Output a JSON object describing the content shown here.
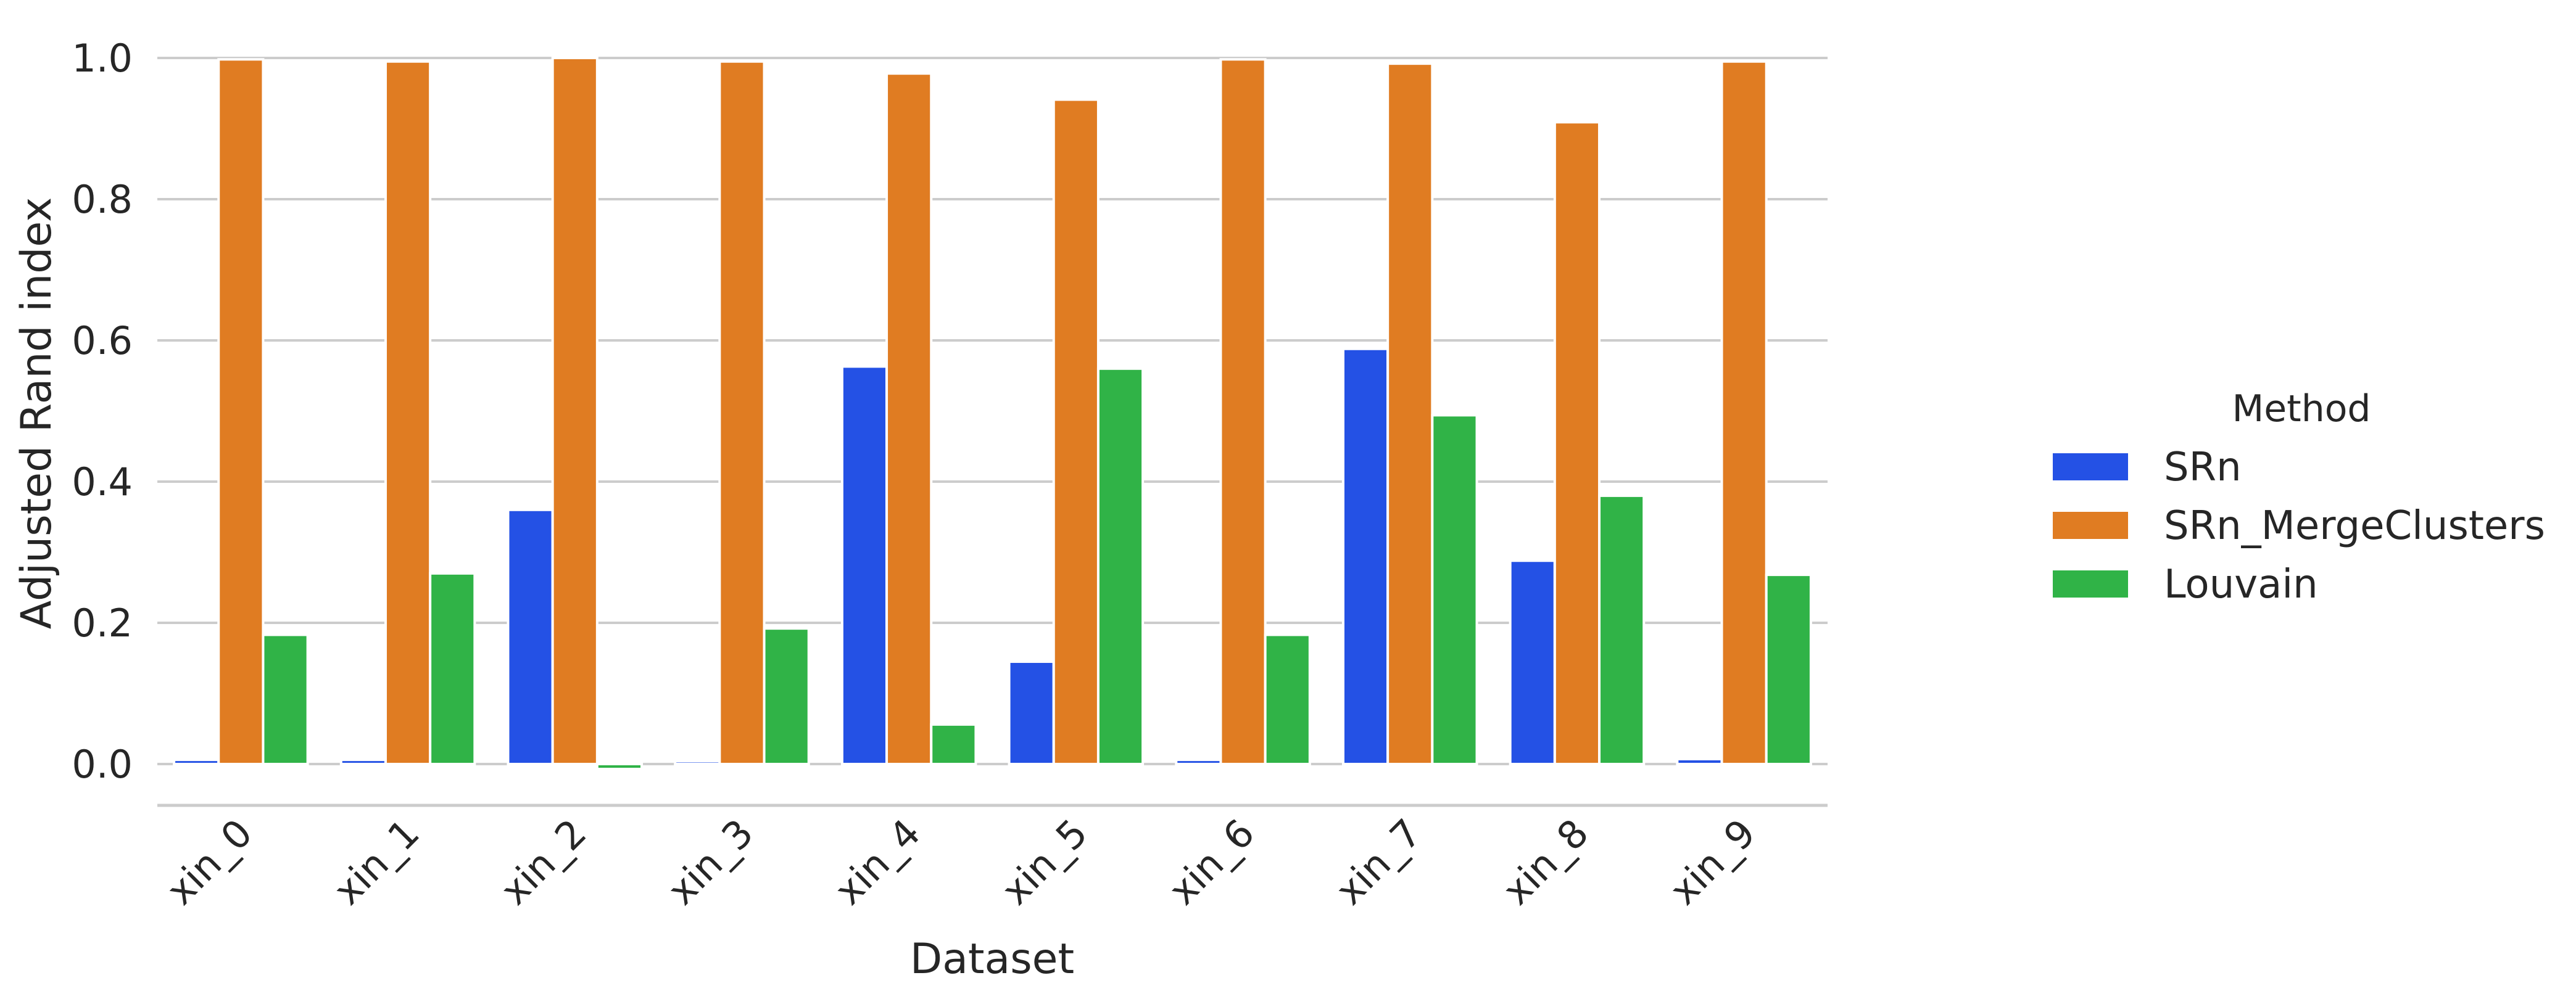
{
  "chart_data": {
    "type": "bar",
    "categories": [
      "xin_0",
      "xin_1",
      "xin_2",
      "xin_3",
      "xin_4",
      "xin_5",
      "xin_6",
      "xin_7",
      "xin_8",
      "xin_9"
    ],
    "series": [
      {
        "name": "SRn",
        "color": "#2451e5",
        "values": [
          0.006,
          0.006,
          0.36,
          0.004,
          0.563,
          0.145,
          0.006,
          0.588,
          0.288,
          0.007
        ]
      },
      {
        "name": "SRn_MergeClusters",
        "color": "#e07c22",
        "values": [
          0.998,
          0.995,
          1.0,
          0.995,
          0.978,
          0.941,
          0.998,
          0.992,
          0.909,
          0.995
        ]
      },
      {
        "name": "Louvain",
        "color": "#30b347",
        "values": [
          0.183,
          0.27,
          -0.007,
          0.192,
          0.056,
          0.56,
          0.183,
          0.494,
          0.38,
          0.268
        ]
      }
    ],
    "xlabel": "Dataset",
    "ylabel": "Adjusted Rand index",
    "yticks": [
      "0.0",
      "0.2",
      "0.4",
      "0.6",
      "0.8",
      "1.0"
    ],
    "ylim": [
      -0.055,
      1.03
    ],
    "grid": "horizontal",
    "legend": {
      "title": "Method",
      "placement": "right"
    }
  }
}
